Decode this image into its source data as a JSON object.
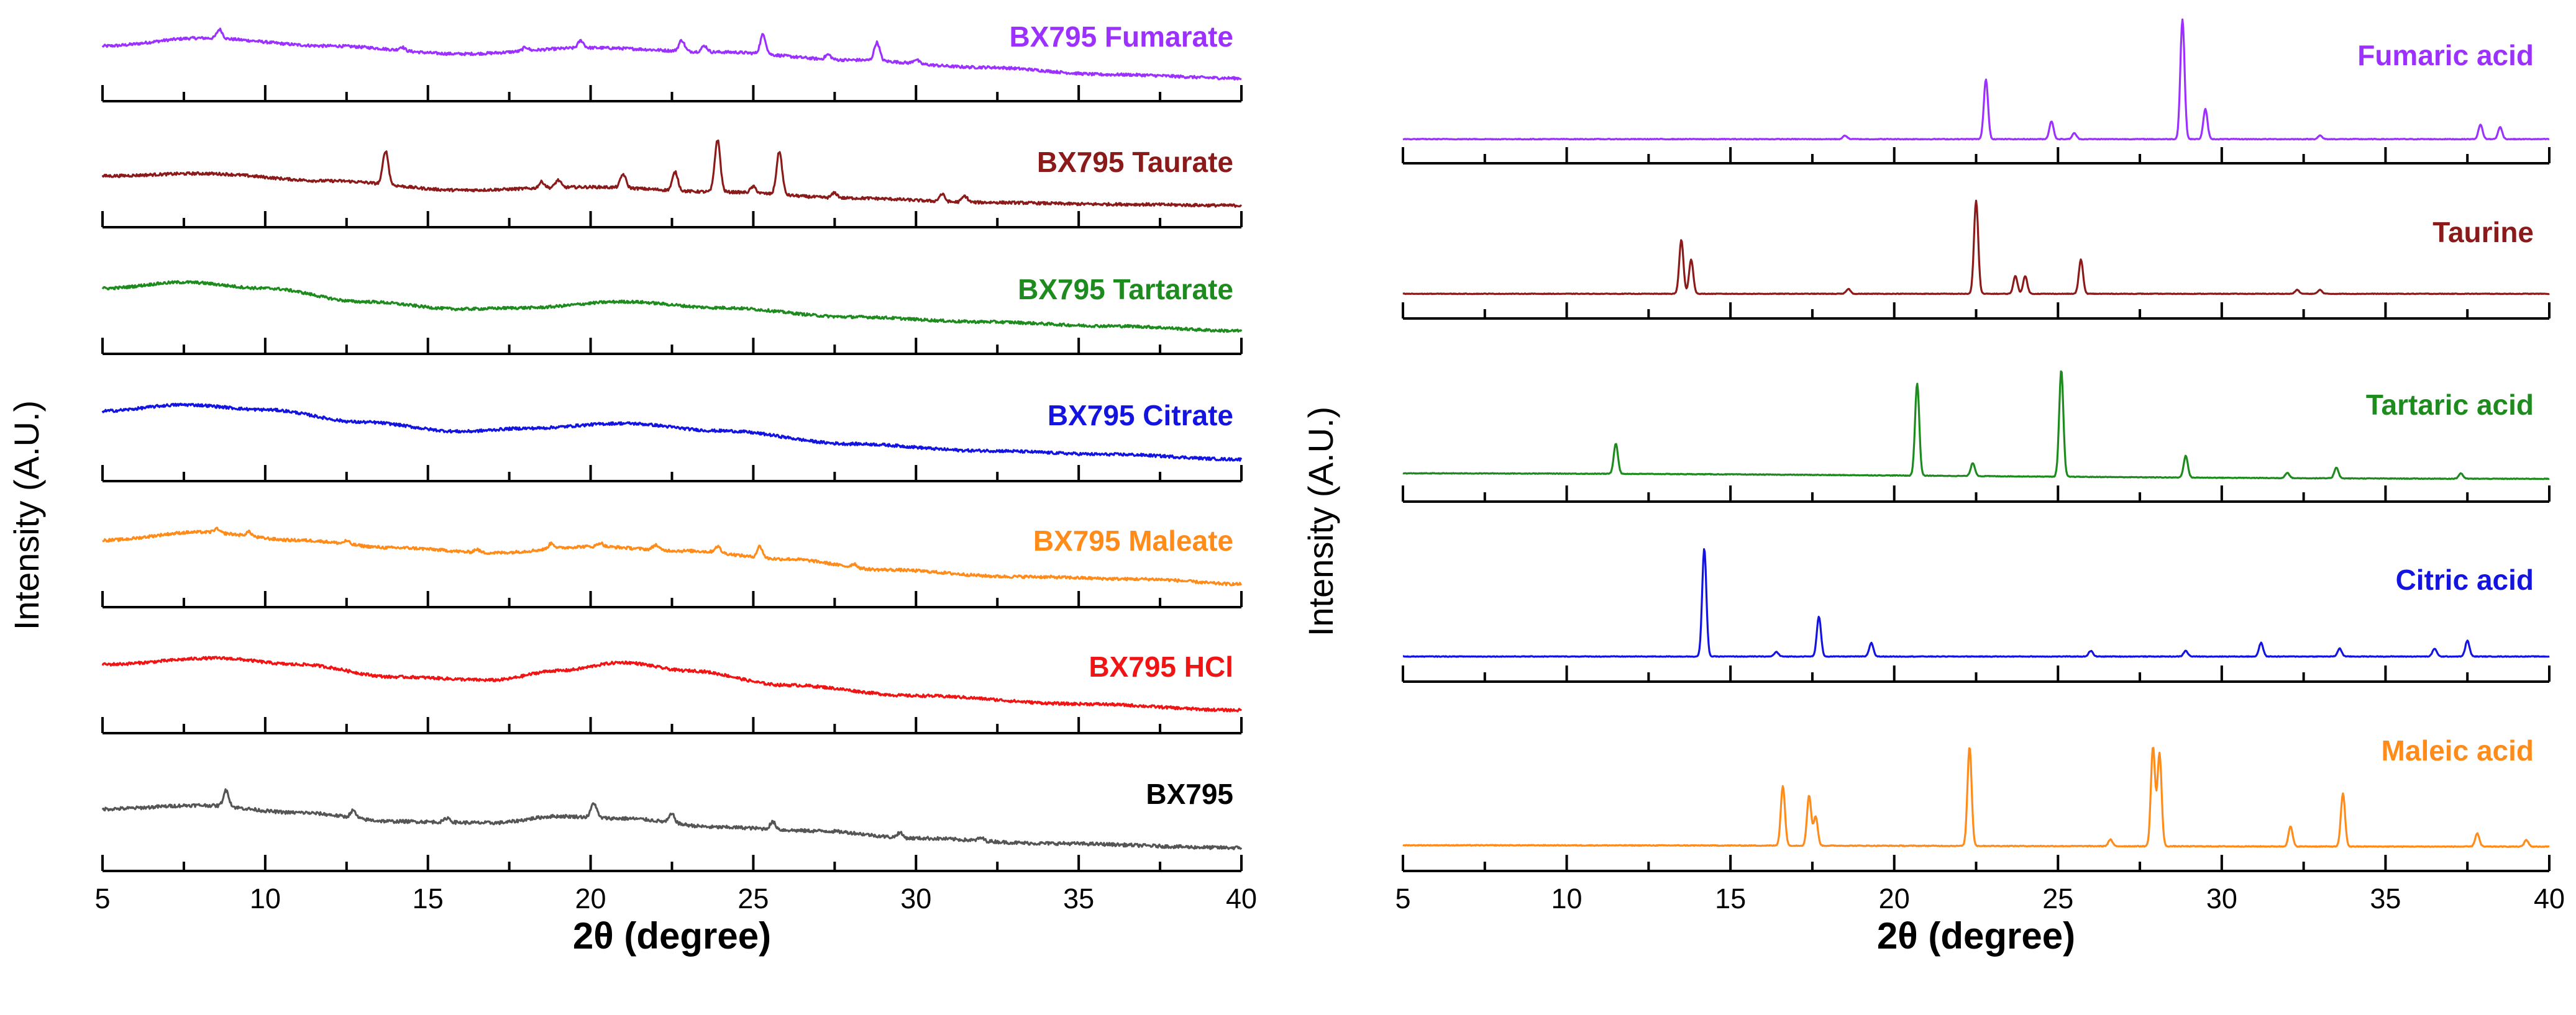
{
  "chart_data": [
    {
      "type": "line",
      "panel": "left",
      "xlabel": "2θ (degree)",
      "ylabel": "Intensity (A.U.)",
      "xlim": [
        5,
        40
      ],
      "xticks": [
        5,
        10,
        15,
        20,
        25,
        30,
        35,
        40
      ],
      "series": [
        {
          "name": "BX795 Fumarate",
          "color": "#9B30FF",
          "baseline": [
            [
              5,
              0.55
            ],
            [
              8,
              0.68
            ],
            [
              12,
              0.55
            ],
            [
              16,
              0.42
            ],
            [
              20,
              0.52
            ],
            [
              24,
              0.45
            ],
            [
              28,
              0.32
            ],
            [
              32,
              0.2
            ],
            [
              36,
              0.08
            ],
            [
              40,
              0.02
            ]
          ],
          "peaks": [
            [
              8.6,
              0.15
            ],
            [
              14.2,
              0.06
            ],
            [
              18,
              0.06
            ],
            [
              19.7,
              0.12
            ],
            [
              22.8,
              0.18
            ],
            [
              23.5,
              0.1
            ],
            [
              25.3,
              0.32
            ],
            [
              27.3,
              0.08
            ],
            [
              28.8,
              0.3
            ],
            [
              30,
              0.07
            ]
          ]
        },
        {
          "name": "BX795 Taurate",
          "color": "#8B1A1A",
          "baseline": [
            [
              5,
              0.48
            ],
            [
              8,
              0.52
            ],
            [
              12,
              0.4
            ],
            [
              16,
              0.25
            ],
            [
              20,
              0.3
            ],
            [
              24,
              0.22
            ],
            [
              28,
              0.12
            ],
            [
              32,
              0.05
            ],
            [
              36,
              0.02
            ],
            [
              40,
              0.0
            ]
          ],
          "peaks": [
            [
              13.7,
              0.55
            ],
            [
              18.5,
              0.1
            ],
            [
              19,
              0.12
            ],
            [
              21,
              0.22
            ],
            [
              22.6,
              0.3
            ],
            [
              23.9,
              0.85
            ],
            [
              25,
              0.1
            ],
            [
              25.8,
              0.7
            ],
            [
              27.5,
              0.08
            ],
            [
              30.8,
              0.12
            ],
            [
              31.5,
              0.1
            ]
          ]
        },
        {
          "name": "BX795 Tartarate",
          "color": "#1E8B1E",
          "baseline": [
            [
              5,
              0.72
            ],
            [
              7.5,
              0.82
            ],
            [
              10,
              0.72
            ],
            [
              13,
              0.5
            ],
            [
              16,
              0.38
            ],
            [
              18,
              0.4
            ],
            [
              21,
              0.5
            ],
            [
              24,
              0.4
            ],
            [
              28,
              0.25
            ],
            [
              32,
              0.17
            ],
            [
              36,
              0.1
            ],
            [
              40,
              0.02
            ]
          ],
          "peaks": []
        },
        {
          "name": "BX795 Citrate",
          "color": "#1414E0",
          "baseline": [
            [
              5,
              0.78
            ],
            [
              7.5,
              0.88
            ],
            [
              10,
              0.8
            ],
            [
              13,
              0.6
            ],
            [
              16,
              0.45
            ],
            [
              18,
              0.5
            ],
            [
              21,
              0.58
            ],
            [
              24,
              0.46
            ],
            [
              28,
              0.25
            ],
            [
              32,
              0.14
            ],
            [
              36,
              0.08
            ],
            [
              40,
              0.0
            ]
          ],
          "peaks": []
        },
        {
          "name": "BX795 Maleate",
          "color": "#FF8C1A",
          "baseline": [
            [
              5,
              0.72
            ],
            [
              8,
              0.85
            ],
            [
              11,
              0.72
            ],
            [
              14,
              0.6
            ],
            [
              17,
              0.52
            ],
            [
              20,
              0.62
            ],
            [
              23,
              0.55
            ],
            [
              26,
              0.42
            ],
            [
              29,
              0.25
            ],
            [
              33,
              0.14
            ],
            [
              37,
              0.1
            ],
            [
              40,
              0.02
            ]
          ],
          "peaks": [
            [
              8.5,
              0.06
            ],
            [
              9.5,
              0.07
            ],
            [
              12.5,
              0.05
            ],
            [
              16.5,
              0.05
            ],
            [
              18.8,
              0.09
            ],
            [
              20.3,
              0.06
            ],
            [
              22,
              0.08
            ],
            [
              23.9,
              0.1
            ],
            [
              25.2,
              0.18
            ],
            [
              28.1,
              0.06
            ]
          ]
        },
        {
          "name": "BX795 HCl",
          "color": "#F01414",
          "baseline": [
            [
              5,
              0.75
            ],
            [
              8.5,
              0.85
            ],
            [
              11,
              0.75
            ],
            [
              14,
              0.55
            ],
            [
              17,
              0.5
            ],
            [
              19,
              0.65
            ],
            [
              21,
              0.78
            ],
            [
              23,
              0.65
            ],
            [
              26,
              0.42
            ],
            [
              30,
              0.25
            ],
            [
              35,
              0.12
            ],
            [
              40,
              0.02
            ]
          ],
          "peaks": []
        },
        {
          "name": "BX795",
          "color": "#555555",
          "baseline": [
            [
              5,
              0.55
            ],
            [
              8,
              0.6
            ],
            [
              11,
              0.5
            ],
            [
              14,
              0.38
            ],
            [
              17,
              0.36
            ],
            [
              19,
              0.45
            ],
            [
              21,
              0.42
            ],
            [
              24,
              0.3
            ],
            [
              27,
              0.25
            ],
            [
              30,
              0.15
            ],
            [
              34,
              0.08
            ],
            [
              40,
              0.02
            ]
          ],
          "peaks": [
            [
              8.8,
              0.22
            ],
            [
              12.7,
              0.1
            ],
            [
              15.6,
              0.06
            ],
            [
              20.1,
              0.2
            ],
            [
              22.5,
              0.12
            ],
            [
              25.6,
              0.1
            ],
            [
              29.5,
              0.07
            ],
            [
              32,
              0.04
            ]
          ]
        }
      ]
    },
    {
      "type": "line",
      "panel": "right",
      "xlabel": "2θ (degree)",
      "ylabel": "Intensity (A.U.)",
      "xlim": [
        5,
        40
      ],
      "xticks": [
        5,
        10,
        15,
        20,
        25,
        30,
        35,
        40
      ],
      "series": [
        {
          "name": "Fumaric acid",
          "color": "#9B30FF",
          "baseline": [
            [
              5,
              0.02
            ],
            [
              40,
              0.02
            ]
          ],
          "peaks": [
            [
              18.5,
              0.03
            ],
            [
              22.8,
              0.5
            ],
            [
              24.8,
              0.15
            ],
            [
              25.5,
              0.05
            ],
            [
              28.8,
              1.0
            ],
            [
              29.5,
              0.25
            ],
            [
              33,
              0.03
            ],
            [
              37.9,
              0.12
            ],
            [
              38.5,
              0.1
            ]
          ]
        },
        {
          "name": "Taurine",
          "color": "#8B1A1A",
          "baseline": [
            [
              5,
              0.03
            ],
            [
              40,
              0.03
            ]
          ],
          "peaks": [
            [
              13.5,
              0.55
            ],
            [
              13.8,
              0.35
            ],
            [
              18.6,
              0.05
            ],
            [
              22.5,
              0.95
            ],
            [
              23.7,
              0.18
            ],
            [
              24,
              0.18
            ],
            [
              25.7,
              0.35
            ],
            [
              32.3,
              0.04
            ],
            [
              33,
              0.04
            ]
          ]
        },
        {
          "name": "Tartaric acid",
          "color": "#1E8B1E",
          "baseline": [
            [
              5,
              0.06
            ],
            [
              40,
              0.01
            ]
          ],
          "peaks": [
            [
              11.5,
              0.28
            ],
            [
              20.7,
              0.85
            ],
            [
              22.4,
              0.12
            ],
            [
              25.1,
              0.98
            ],
            [
              28.9,
              0.2
            ],
            [
              32,
              0.05
            ],
            [
              33.5,
              0.1
            ],
            [
              37.3,
              0.05
            ]
          ]
        },
        {
          "name": "Citric acid",
          "color": "#1414E0",
          "baseline": [
            [
              5,
              0.03
            ],
            [
              40,
              0.03
            ]
          ],
          "peaks": [
            [
              14.2,
              0.95
            ],
            [
              16.4,
              0.04
            ],
            [
              17.7,
              0.35
            ],
            [
              19.3,
              0.12
            ],
            [
              26,
              0.05
            ],
            [
              28.9,
              0.05
            ],
            [
              31.2,
              0.12
            ],
            [
              33.6,
              0.07
            ],
            [
              36.5,
              0.07
            ],
            [
              37.5,
              0.14
            ]
          ]
        },
        {
          "name": "Maleic acid",
          "color": "#FF8C1A",
          "baseline": [
            [
              5,
              0.03
            ],
            [
              40,
              0.02
            ]
          ],
          "peaks": [
            [
              16.6,
              0.45
            ],
            [
              17.4,
              0.38
            ],
            [
              17.6,
              0.22
            ],
            [
              22.3,
              0.75
            ],
            [
              26.6,
              0.05
            ],
            [
              27.9,
              0.75
            ],
            [
              28.1,
              0.7
            ],
            [
              32.1,
              0.15
            ],
            [
              33.7,
              0.4
            ],
            [
              37.8,
              0.1
            ],
            [
              39.3,
              0.05
            ]
          ]
        }
      ]
    }
  ]
}
